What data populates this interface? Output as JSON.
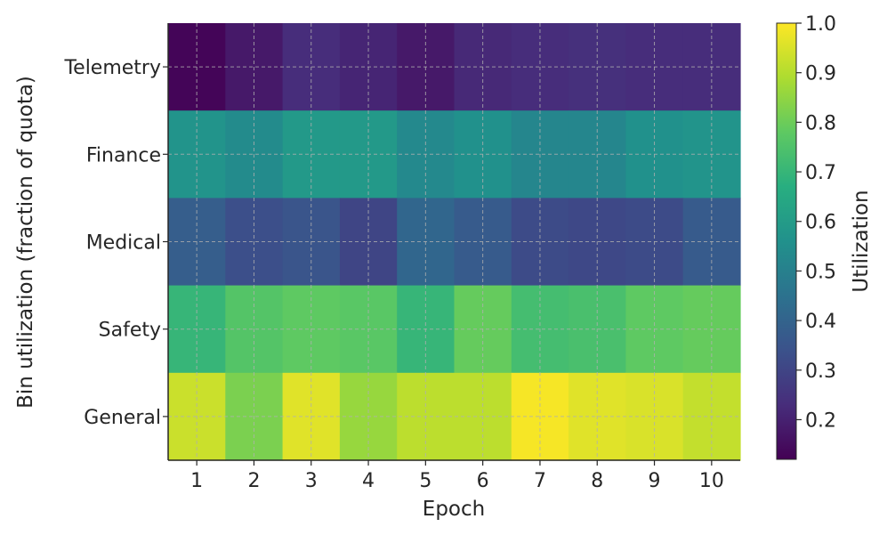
{
  "chart_data": {
    "type": "heatmap",
    "title": "",
    "xlabel": "Epoch",
    "ylabel": "Bin utilization (fraction of quota)",
    "x": [
      1,
      2,
      3,
      4,
      5,
      6,
      7,
      8,
      9,
      10
    ],
    "categories": [
      "Telemetry",
      "Finance",
      "Medical",
      "Safety",
      "General"
    ],
    "values": [
      [
        0.13,
        0.18,
        0.23,
        0.21,
        0.18,
        0.22,
        0.23,
        0.24,
        0.23,
        0.23
      ],
      [
        0.57,
        0.54,
        0.59,
        0.59,
        0.53,
        0.56,
        0.52,
        0.52,
        0.56,
        0.57
      ],
      [
        0.38,
        0.33,
        0.35,
        0.3,
        0.41,
        0.37,
        0.32,
        0.31,
        0.32,
        0.37
      ],
      [
        0.7,
        0.76,
        0.78,
        0.77,
        0.7,
        0.79,
        0.73,
        0.74,
        0.78,
        0.79
      ],
      [
        0.93,
        0.82,
        0.96,
        0.86,
        0.91,
        0.91,
        0.99,
        0.96,
        0.95,
        0.92
      ]
    ],
    "colorbar": {
      "label": "Utilization",
      "range": [
        0.12,
        1.0
      ],
      "ticks": [
        0.2,
        0.3,
        0.4,
        0.5,
        0.6,
        0.7,
        0.8,
        0.9,
        1.0
      ],
      "colormap": "viridis"
    },
    "grid": true
  }
}
